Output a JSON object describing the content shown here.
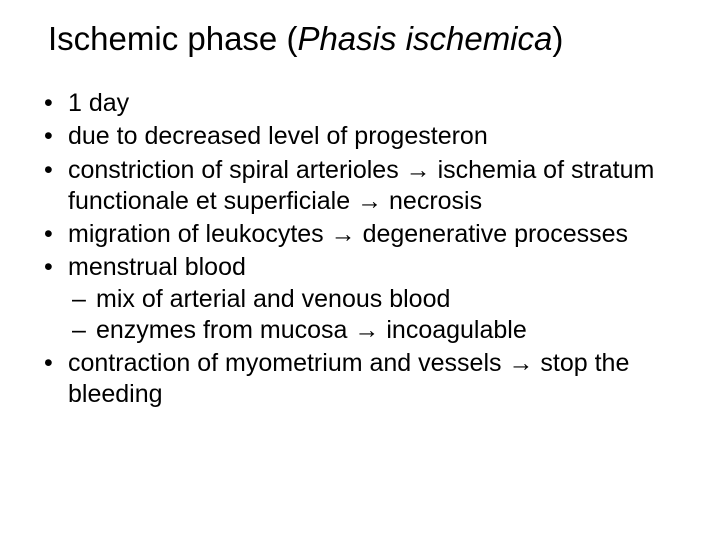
{
  "title": {
    "plain": "Ischemic phase (",
    "italic": "Phasis ischemica",
    "close": ")"
  },
  "bullets": {
    "b1": "1 day",
    "b2": "due to decreased level of progesteron",
    "b3": "constriction of spiral arterioles → ischemia of stratum functionale et superficiale → necrosis",
    "b4": "migration of leukocytes → degenerative processes",
    "b5": "menstrual blood",
    "b5_sub1": "mix of arterial and venous blood",
    "b5_sub2": "enzymes from mucosa → incoagulable",
    "b6": "contraction of myometrium and vessels → stop the bleeding"
  },
  "colors": {
    "background": "#ffffff",
    "text": "#000000"
  },
  "typography": {
    "title_fontsize": 33,
    "body_fontsize": 25,
    "font_family": "Arial"
  }
}
